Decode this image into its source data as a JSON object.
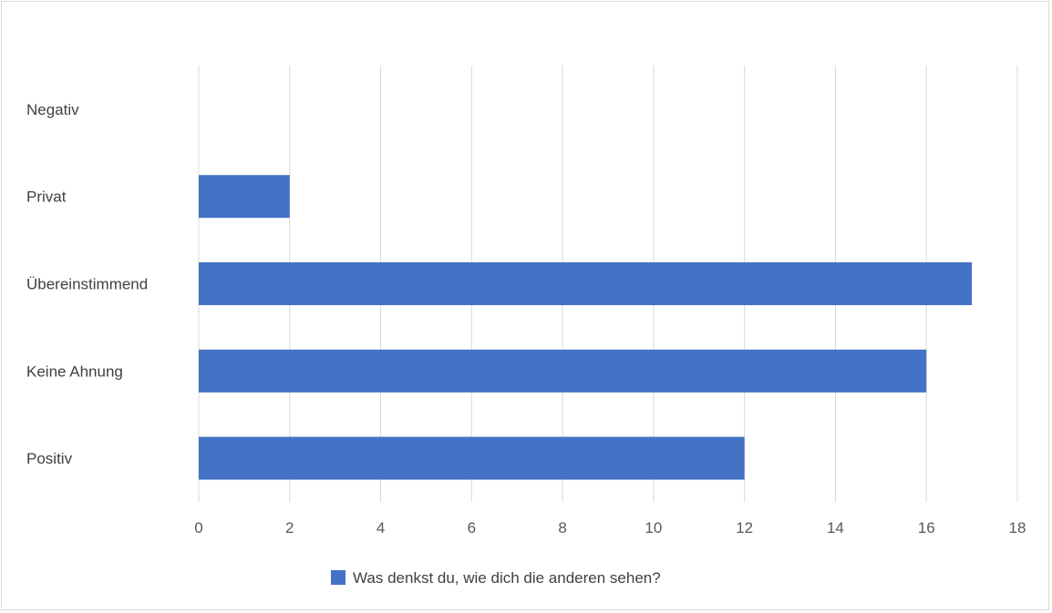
{
  "chart_data": {
    "type": "bar",
    "orientation": "horizontal",
    "categories": [
      "Negativ",
      "Privat",
      "Übereinstimmend",
      "Keine Ahnung",
      "Positiv"
    ],
    "series": [
      {
        "name": "Was denkst du, wie dich die anderen sehen?",
        "values": [
          0,
          2,
          17,
          16,
          12
        ],
        "color": "#4472C4"
      }
    ],
    "xlim": [
      0,
      18
    ],
    "xticks": [
      "0",
      "2",
      "4",
      "6",
      "8",
      "10",
      "12",
      "14",
      "16",
      "18"
    ],
    "grid": "vertical",
    "legend": "bottom",
    "gridColor": "#d9d9d9"
  }
}
